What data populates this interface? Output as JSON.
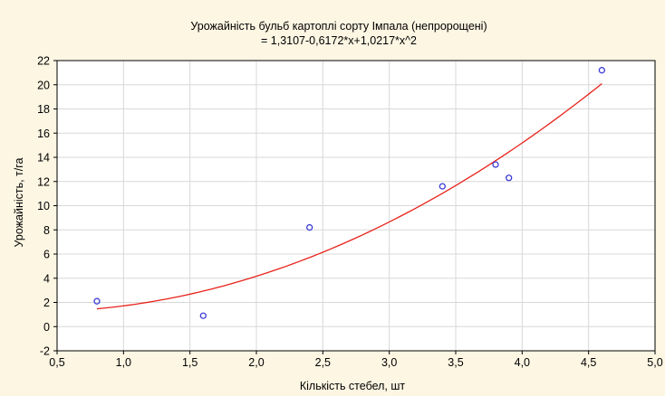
{
  "chart_data": {
    "type": "scatter",
    "title": "Урожайність бульб картоплі сорту Імпала (непророщені)",
    "subtitle": "= 1,3107-0,6172*x+1,0217*x^2",
    "xlabel": "Кількість стебел, шт",
    "ylabel": "Урожайність, т/га",
    "xlim": [
      0.5,
      5.0
    ],
    "ylim": [
      -2,
      22
    ],
    "x_ticks": [
      "0,5",
      "1,0",
      "1,5",
      "2,0",
      "2,5",
      "3,0",
      "3,5",
      "4,0",
      "4,5",
      "5,0"
    ],
    "y_ticks": [
      "-2",
      "0",
      "2",
      "4",
      "6",
      "8",
      "10",
      "12",
      "14",
      "16",
      "18",
      "20",
      "22"
    ],
    "grid": true,
    "points": [
      {
        "x": 0.8,
        "y": 2.1
      },
      {
        "x": 1.6,
        "y": 0.9
      },
      {
        "x": 2.4,
        "y": 8.2
      },
      {
        "x": 3.4,
        "y": 11.6
      },
      {
        "x": 3.8,
        "y": 13.4
      },
      {
        "x": 3.9,
        "y": 12.3
      },
      {
        "x": 4.6,
        "y": 21.2
      }
    ],
    "fit": {
      "type": "quadratic",
      "coefficients": [
        1.3107,
        -0.6172,
        1.0217
      ],
      "x_range": [
        0.8,
        4.6
      ]
    },
    "colors": {
      "points": "#3b3bd6",
      "fit_line": "#e8221a",
      "grid": "#d8d8d8",
      "plot_bg": "#ffffff",
      "page_bg": "#fdf6e3"
    }
  }
}
